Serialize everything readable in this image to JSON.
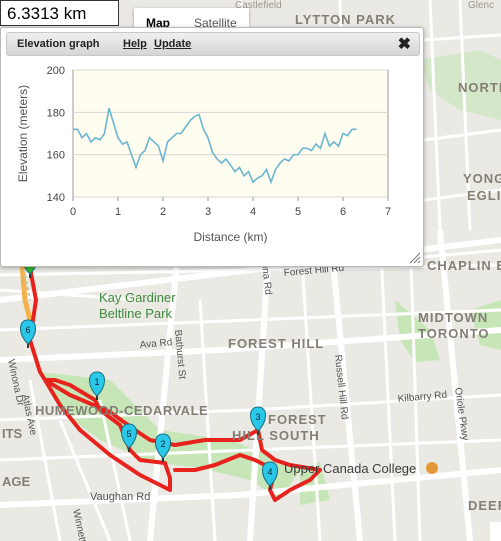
{
  "distance": "6.3313 km",
  "map_type": {
    "map_label": "Map",
    "satellite_label": "Satellite",
    "selected": "Map"
  },
  "panel": {
    "title": "Elevation graph",
    "help": "Help",
    "update": "Update"
  },
  "map_labels": {
    "lytton_park": "LYTTON PARK",
    "north": "NORTH",
    "yonge": "YONG",
    "eglinton": "EGLI",
    "chaplin": "CHAPLIN EST",
    "kay": "Kay Gardiner",
    "beltline": "Beltline Park",
    "forest_hill": "FOREST HILL",
    "midtown": "MIDTOWN",
    "toronto": "TORONTO",
    "humewood": "HUMEWOOD-CEDARVALE",
    "forest_hill_south_1": "FOREST",
    "forest_hill_south_2": "HILL SOUTH",
    "upper_canada": "Upper Canada College",
    "deer": "DEER",
    "its": "ITS",
    "age": "AGE",
    "vaughan": "Vaughan Rd",
    "ava": "Ava Rd",
    "bathurst": "Bathurst St",
    "spadina": "Spadina Rd",
    "russell": "Russell Hill Rd",
    "kilbarry": "Kilbarry Rd",
    "oriole": "Oriole Pkwy",
    "forest_hill_rd": "Forest Hill Rd",
    "winona": "Winona Dr",
    "atlas": "Atlas Ave",
    "winnett": "Winnett",
    "glencairn": "Glenc",
    "castlefield": "Castlefield"
  },
  "markers": [
    {
      "label": "1",
      "color": "#29c7e8"
    },
    {
      "label": "2",
      "color": "#29c7e8"
    },
    {
      "label": "3",
      "color": "#29c7e8"
    },
    {
      "label": "4",
      "color": "#29c7e8"
    },
    {
      "label": "5",
      "color": "#29c7e8"
    },
    {
      "label": "6",
      "color": "#29c7e8"
    },
    {
      "label": "",
      "color": "#2eb82e"
    }
  ],
  "route_color": "#e8231d",
  "chart_data": {
    "type": "line",
    "title": "",
    "xlabel": "Distance (km)",
    "ylabel": "Elevation (meters)",
    "xlim": [
      0,
      7
    ],
    "ylim": [
      140,
      200
    ],
    "xticks": [
      "0",
      "1",
      "2",
      "3",
      "4",
      "5",
      "6",
      "7"
    ],
    "yticks": [
      "140",
      "160",
      "180",
      "200"
    ],
    "grid": true,
    "series": [
      {
        "color": "#6bb6d1",
        "x": [
          0,
          0.1,
          0.2,
          0.3,
          0.4,
          0.5,
          0.6,
          0.7,
          0.8,
          0.9,
          1.0,
          1.1,
          1.2,
          1.3,
          1.4,
          1.5,
          1.6,
          1.7,
          1.8,
          1.9,
          2.0,
          2.1,
          2.2,
          2.3,
          2.4,
          2.5,
          2.6,
          2.7,
          2.8,
          2.9,
          3.0,
          3.1,
          3.2,
          3.3,
          3.4,
          3.5,
          3.6,
          3.7,
          3.8,
          3.9,
          4.0,
          4.1,
          4.2,
          4.3,
          4.4,
          4.5,
          4.6,
          4.7,
          4.8,
          4.9,
          5.0,
          5.1,
          5.2,
          5.3,
          5.4,
          5.5,
          5.6,
          5.7,
          5.8,
          5.9,
          6.0,
          6.1,
          6.2,
          6.3
        ],
        "values": [
          172,
          172,
          168,
          170,
          166,
          168,
          167,
          170,
          182,
          175,
          168,
          165,
          166,
          160,
          154,
          160,
          162,
          168,
          166,
          164,
          157,
          166,
          168,
          170,
          170,
          173,
          176,
          178,
          179,
          172,
          168,
          161,
          158,
          156,
          158,
          155,
          152,
          154,
          150,
          152,
          147,
          149,
          150,
          153,
          147,
          153,
          156,
          158,
          157,
          160,
          160,
          163,
          163,
          162,
          165,
          163,
          170,
          164,
          166,
          164,
          170,
          169,
          172,
          172
        ]
      }
    ]
  }
}
